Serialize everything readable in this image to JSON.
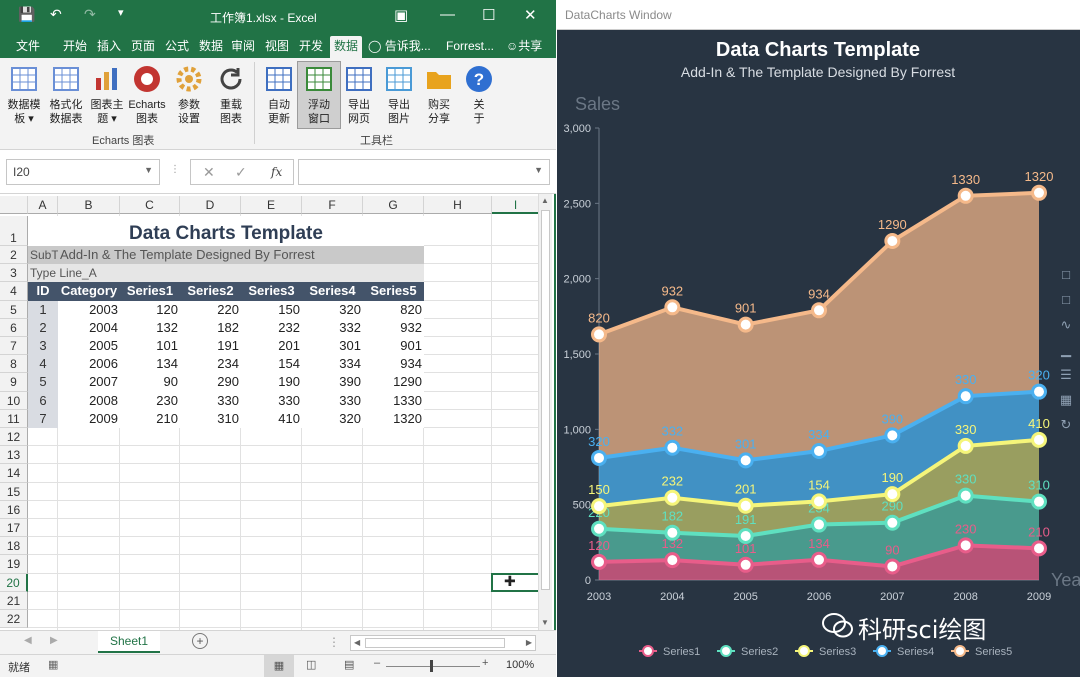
{
  "excel": {
    "title": "工作簿1.xlsx - Excel",
    "tabs": [
      "文件",
      "开始",
      "插入",
      "页面",
      "公式",
      "数据",
      "审阅",
      "视图",
      "开发工",
      "数据",
      "告诉我...",
      "Forrest...",
      "共享"
    ],
    "active_tab": "数据",
    "ribbon": {
      "group1_label": "Echarts 图表",
      "group2_label": "工具栏",
      "buttons": [
        {
          "label": "数据模\n板 ▾",
          "icon": "table-template-icon"
        },
        {
          "label": "格式化\n数据表",
          "icon": "format-table-icon"
        },
        {
          "label": "图表主\n题 ▾",
          "icon": "chart-theme-icon"
        },
        {
          "label": "Echarts\n图表",
          "icon": "echarts-icon"
        },
        {
          "label": "参数\n设置",
          "icon": "settings-gear-icon"
        },
        {
          "label": "重载\n图表",
          "icon": "reload-icon"
        },
        {
          "label": "自动\n更新",
          "icon": "auto-update-icon"
        },
        {
          "label": "浮动\n窗口",
          "icon": "float-window-icon"
        },
        {
          "label": "导出\n网页",
          "icon": "export-web-icon"
        },
        {
          "label": "导出\n图片",
          "icon": "export-image-icon"
        },
        {
          "label": "购买\n分享",
          "icon": "folder-icon"
        },
        {
          "label": "关\n于",
          "icon": "help-icon"
        }
      ]
    },
    "namebox": "I20",
    "fx": "fx",
    "columns": [
      "A",
      "B",
      "C",
      "D",
      "E",
      "F",
      "G",
      "H",
      "I"
    ],
    "rows": [
      "1",
      "2",
      "3",
      "4",
      "5",
      "6",
      "7",
      "8",
      "9",
      "10",
      "11",
      "12",
      "13",
      "14",
      "15",
      "16",
      "17",
      "18",
      "19",
      "20",
      "21",
      "22"
    ],
    "sheet": {
      "title": "Data Charts Template",
      "subtitle_key": "SubT",
      "subtitle": "Add-In & The Template Designed By Forrest",
      "type_row": "Type Line_A",
      "headers": [
        "ID",
        "Category",
        "Series1",
        "Series2",
        "Series3",
        "Series4",
        "Series5"
      ],
      "data": [
        [
          "1",
          "2003",
          "120",
          "220",
          "150",
          "320",
          "820"
        ],
        [
          "2",
          "2004",
          "132",
          "182",
          "232",
          "332",
          "932"
        ],
        [
          "3",
          "2005",
          "101",
          "191",
          "201",
          "301",
          "901"
        ],
        [
          "4",
          "2006",
          "134",
          "234",
          "154",
          "334",
          "934"
        ],
        [
          "5",
          "2007",
          "90",
          "290",
          "190",
          "390",
          "1290"
        ],
        [
          "6",
          "2008",
          "230",
          "330",
          "330",
          "330",
          "1330"
        ],
        [
          "7",
          "2009",
          "210",
          "310",
          "410",
          "320",
          "1320"
        ]
      ]
    },
    "sheet_tab": "Sheet1",
    "status_ready": "就绪",
    "zoom": "100%"
  },
  "chart_window": {
    "title": "DataCharts Window",
    "watermark": "科研sci绘图"
  },
  "chart_data": {
    "type": "area",
    "stacked": true,
    "title": "Data Charts Template",
    "subtitle": "Add-In & The Template Designed By Forrest",
    "ylabel": "Sales",
    "xlabel": "Year",
    "categories": [
      "2003",
      "2004",
      "2005",
      "2006",
      "2007",
      "2008",
      "2009"
    ],
    "ylim": [
      0,
      3000
    ],
    "yticks": [
      "0",
      "500",
      "1,000",
      "1,500",
      "2,000",
      "2,500",
      "3,000"
    ],
    "series": [
      {
        "name": "Series1",
        "values": [
          120,
          132,
          101,
          134,
          90,
          230,
          210
        ],
        "color": "#e85d8a"
      },
      {
        "name": "Series2",
        "values": [
          220,
          182,
          191,
          234,
          290,
          330,
          310
        ],
        "color": "#5fe0c0"
      },
      {
        "name": "Series3",
        "values": [
          150,
          232,
          201,
          154,
          190,
          330,
          410
        ],
        "color": "#f5f57a"
      },
      {
        "name": "Series4",
        "values": [
          320,
          332,
          301,
          334,
          390,
          330,
          320
        ],
        "color": "#4ab0f0"
      },
      {
        "name": "Series5",
        "values": [
          820,
          932,
          901,
          934,
          1290,
          1330,
          1320
        ],
        "color": "#f5b98a"
      }
    ],
    "legend_position": "bottom",
    "grid": false
  }
}
